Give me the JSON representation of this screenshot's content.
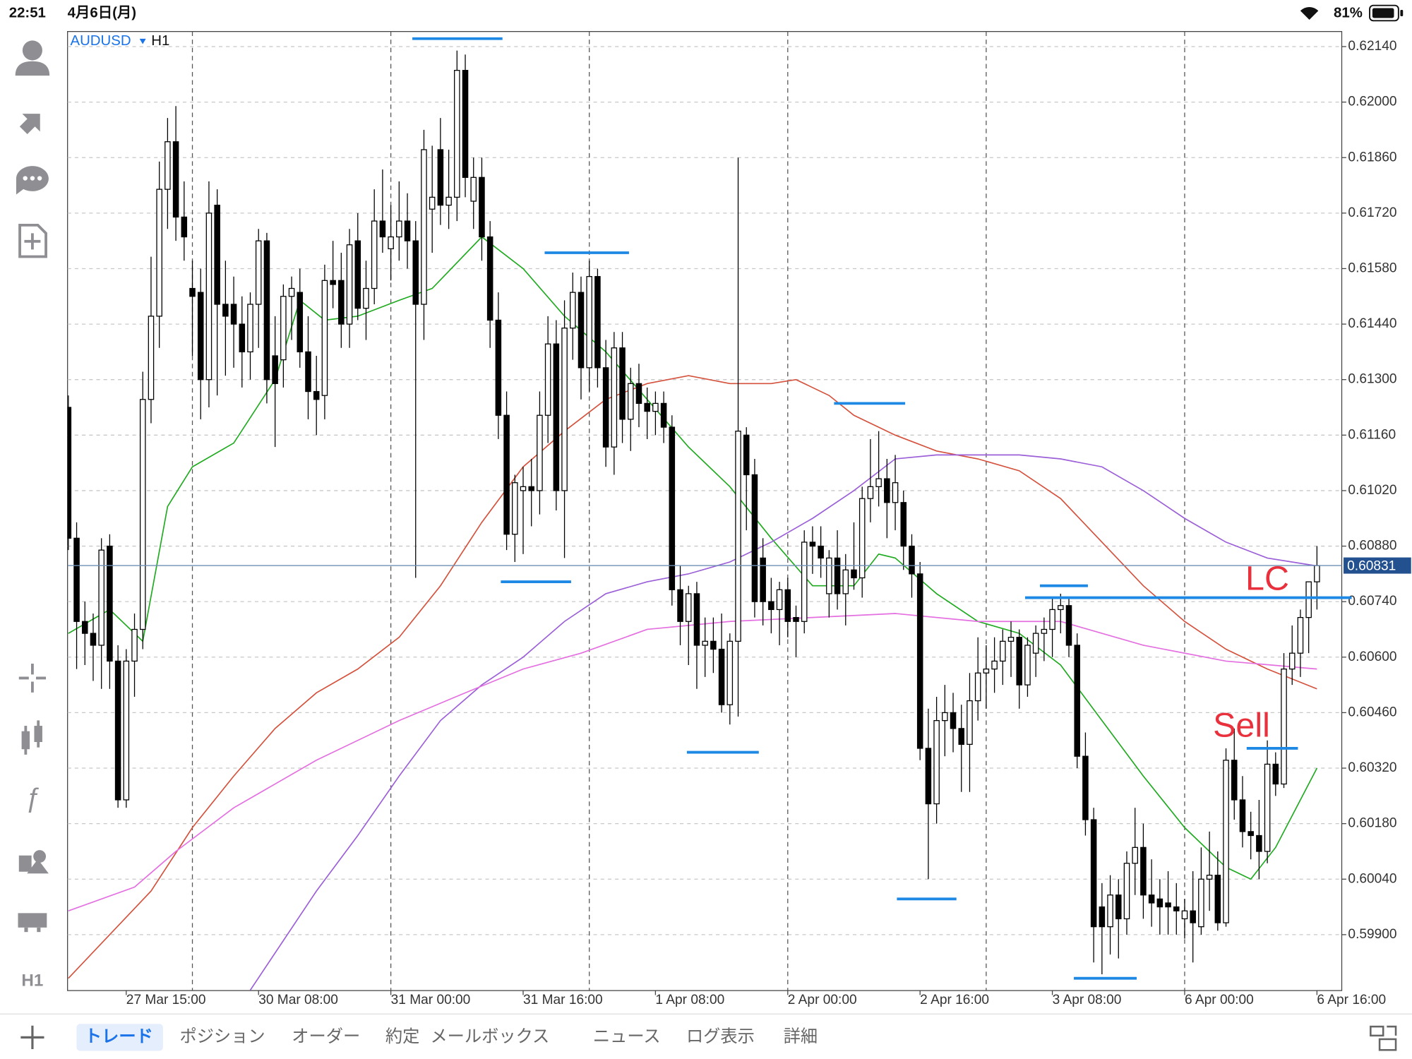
{
  "status_bar": {
    "time": "22:51",
    "date": "4月6日(月)",
    "battery": "81%"
  },
  "sidebar": {
    "timeframe": "H1"
  },
  "tabs": [
    "トレード",
    "ポジション",
    "オーダー",
    "約定",
    "メールボックス",
    "ニュース",
    "ログ表示",
    "詳細"
  ],
  "chart_data": {
    "type": "candlestick",
    "symbol": "AUDUSD",
    "timeframe": "H1",
    "up_color": "#ffffff",
    "down_color": "#000000",
    "candles": [
      [
        0.6123,
        0.6126,
        0.6087,
        0.609
      ],
      [
        0.609,
        0.6094,
        0.6057,
        0.6069
      ],
      [
        0.6069,
        0.6074,
        0.6058,
        0.6066
      ],
      [
        0.6066,
        0.6071,
        0.6054,
        0.6063
      ],
      [
        0.6063,
        0.609,
        0.6052,
        0.6087
      ],
      [
        0.6088,
        0.6091,
        0.6052,
        0.6059
      ],
      [
        0.6059,
        0.6063,
        0.6022,
        0.6024
      ],
      [
        0.6024,
        0.6062,
        0.6022,
        0.6059
      ],
      [
        0.6059,
        0.6071,
        0.605,
        0.6067
      ],
      [
        0.6067,
        0.6132,
        0.6062,
        0.6125
      ],
      [
        0.6125,
        0.6161,
        0.6119,
        0.6146
      ],
      [
        0.6146,
        0.6185,
        0.6138,
        0.6178
      ],
      [
        0.6178,
        0.6196,
        0.6168,
        0.619
      ],
      [
        0.619,
        0.6199,
        0.6165,
        0.6171
      ],
      [
        0.6171,
        0.618,
        0.616,
        0.6166
      ],
      [
        0.6153,
        0.616,
        0.6136,
        0.6151
      ],
      [
        0.6152,
        0.6158,
        0.612,
        0.613
      ],
      [
        0.613,
        0.618,
        0.6123,
        0.6172
      ],
      [
        0.6174,
        0.6178,
        0.6126,
        0.6149
      ],
      [
        0.6149,
        0.616,
        0.6131,
        0.6146
      ],
      [
        0.6149,
        0.6156,
        0.6133,
        0.6144
      ],
      [
        0.6144,
        0.6151,
        0.6128,
        0.6137
      ],
      [
        0.6137,
        0.6152,
        0.613,
        0.6149
      ],
      [
        0.6149,
        0.6168,
        0.6138,
        0.6165
      ],
      [
        0.6165,
        0.6167,
        0.6124,
        0.613
      ],
      [
        0.6136,
        0.6146,
        0.6113,
        0.6129
      ],
      [
        0.6135,
        0.6154,
        0.6128,
        0.6151
      ],
      [
        0.6151,
        0.6156,
        0.614,
        0.6153
      ],
      [
        0.6152,
        0.6158,
        0.6133,
        0.6137
      ],
      [
        0.6137,
        0.6146,
        0.612,
        0.6127
      ],
      [
        0.6127,
        0.6136,
        0.6116,
        0.6125
      ],
      [
        0.6126,
        0.6159,
        0.612,
        0.6155
      ],
      [
        0.6155,
        0.6165,
        0.6148,
        0.6154
      ],
      [
        0.6155,
        0.6162,
        0.6138,
        0.6144
      ],
      [
        0.6144,
        0.6168,
        0.6138,
        0.6164
      ],
      [
        0.6165,
        0.6172,
        0.6145,
        0.6148
      ],
      [
        0.6148,
        0.616,
        0.614,
        0.6153
      ],
      [
        0.6153,
        0.6178,
        0.6149,
        0.617
      ],
      [
        0.617,
        0.6183,
        0.6162,
        0.6166
      ],
      [
        0.6163,
        0.6174,
        0.6155,
        0.6166
      ],
      [
        0.6166,
        0.618,
        0.616,
        0.617
      ],
      [
        0.617,
        0.6177,
        0.6158,
        0.6165
      ],
      [
        0.6165,
        0.617,
        0.608,
        0.6149
      ],
      [
        0.6149,
        0.6193,
        0.614,
        0.6188
      ],
      [
        0.6173,
        0.6189,
        0.6162,
        0.6176
      ],
      [
        0.6188,
        0.6196,
        0.6169,
        0.6174
      ],
      [
        0.6174,
        0.6188,
        0.6168,
        0.6176
      ],
      [
        0.6176,
        0.6213,
        0.617,
        0.6208
      ],
      [
        0.6208,
        0.6212,
        0.6176,
        0.6181
      ],
      [
        0.6175,
        0.6186,
        0.6168,
        0.6181
      ],
      [
        0.6181,
        0.6186,
        0.616,
        0.6166
      ],
      [
        0.6166,
        0.617,
        0.6138,
        0.6145
      ],
      [
        0.6145,
        0.6152,
        0.6115,
        0.6121
      ],
      [
        0.6121,
        0.6127,
        0.6087,
        0.6091
      ],
      [
        0.6091,
        0.6106,
        0.6084,
        0.6104
      ],
      [
        0.6102,
        0.6108,
        0.6086,
        0.6103
      ],
      [
        0.6103,
        0.611,
        0.6093,
        0.6102
      ],
      [
        0.6102,
        0.6127,
        0.6096,
        0.6121
      ],
      [
        0.6121,
        0.6146,
        0.6114,
        0.6139
      ],
      [
        0.6139,
        0.6145,
        0.6097,
        0.6102
      ],
      [
        0.6102,
        0.615,
        0.6085,
        0.6143
      ],
      [
        0.6143,
        0.6157,
        0.6135,
        0.6152
      ],
      [
        0.6152,
        0.6156,
        0.6125,
        0.6133
      ],
      [
        0.6133,
        0.616,
        0.6127,
        0.6156
      ],
      [
        0.6156,
        0.6158,
        0.6128,
        0.6133
      ],
      [
        0.6133,
        0.614,
        0.6108,
        0.6113
      ],
      [
        0.6113,
        0.6142,
        0.6106,
        0.6138
      ],
      [
        0.6138,
        0.6142,
        0.6114,
        0.612
      ],
      [
        0.612,
        0.6133,
        0.6112,
        0.6129
      ],
      [
        0.6129,
        0.6134,
        0.6118,
        0.6124
      ],
      [
        0.6124,
        0.6128,
        0.6115,
        0.6122
      ],
      [
        0.6122,
        0.6127,
        0.6116,
        0.6124
      ],
      [
        0.6124,
        0.6127,
        0.6114,
        0.6118
      ],
      [
        0.6118,
        0.6121,
        0.6073,
        0.6077
      ],
      [
        0.6077,
        0.6083,
        0.6063,
        0.6069
      ],
      [
        0.6069,
        0.6078,
        0.6058,
        0.6076
      ],
      [
        0.6076,
        0.6079,
        0.6052,
        0.6063
      ],
      [
        0.6063,
        0.607,
        0.6055,
        0.6064
      ],
      [
        0.6064,
        0.607,
        0.6056,
        0.6062
      ],
      [
        0.6062,
        0.6071,
        0.6046,
        0.6048
      ],
      [
        0.6048,
        0.6066,
        0.6043,
        0.6064
      ],
      [
        0.6064,
        0.6186,
        0.6045,
        0.6117
      ],
      [
        0.6116,
        0.6118,
        0.6092,
        0.6106
      ],
      [
        0.6106,
        0.611,
        0.607,
        0.6074
      ],
      [
        0.6085,
        0.609,
        0.6068,
        0.6074
      ],
      [
        0.6074,
        0.608,
        0.6066,
        0.6072
      ],
      [
        0.6072,
        0.6079,
        0.6063,
        0.6077
      ],
      [
        0.6077,
        0.608,
        0.6065,
        0.6069
      ],
      [
        0.607,
        0.6073,
        0.606,
        0.6069
      ],
      [
        0.6069,
        0.6092,
        0.6066,
        0.6089
      ],
      [
        0.6089,
        0.6093,
        0.6081,
        0.6088
      ],
      [
        0.6088,
        0.6093,
        0.608,
        0.6085
      ],
      [
        0.6076,
        0.6087,
        0.607,
        0.6085
      ],
      [
        0.6085,
        0.6092,
        0.6072,
        0.6076
      ],
      [
        0.6076,
        0.6086,
        0.6068,
        0.6082
      ],
      [
        0.6082,
        0.6094,
        0.6077,
        0.608
      ],
      [
        0.608,
        0.6103,
        0.6075,
        0.61
      ],
      [
        0.61,
        0.6115,
        0.6094,
        0.6103
      ],
      [
        0.6103,
        0.6117,
        0.6098,
        0.6105
      ],
      [
        0.6105,
        0.611,
        0.609,
        0.6099
      ],
      [
        0.6099,
        0.6111,
        0.6092,
        0.6104
      ],
      [
        0.6099,
        0.6102,
        0.6082,
        0.6088
      ],
      [
        0.6088,
        0.6091,
        0.6075,
        0.6081
      ],
      [
        0.6081,
        0.6084,
        0.6034,
        0.6037
      ],
      [
        0.6037,
        0.6047,
        0.6004,
        0.6023
      ],
      [
        0.6023,
        0.605,
        0.6018,
        0.6044
      ],
      [
        0.6044,
        0.6053,
        0.6035,
        0.6046
      ],
      [
        0.6046,
        0.6051,
        0.6036,
        0.6042
      ],
      [
        0.6042,
        0.6048,
        0.6026,
        0.6038
      ],
      [
        0.6038,
        0.6056,
        0.6026,
        0.6049
      ],
      [
        0.6049,
        0.6065,
        0.6044,
        0.6056
      ],
      [
        0.6056,
        0.6063,
        0.6047,
        0.6057
      ],
      [
        0.6057,
        0.6065,
        0.6051,
        0.6059
      ],
      [
        0.6059,
        0.6067,
        0.6053,
        0.6064
      ],
      [
        0.6064,
        0.6069,
        0.6055,
        0.6065
      ],
      [
        0.6065,
        0.6067,
        0.6047,
        0.6053
      ],
      [
        0.6053,
        0.6065,
        0.605,
        0.6063
      ],
      [
        0.6061,
        0.6068,
        0.6055,
        0.6066
      ],
      [
        0.6066,
        0.607,
        0.6059,
        0.6067
      ],
      [
        0.6067,
        0.6075,
        0.606,
        0.6072
      ],
      [
        0.6072,
        0.6076,
        0.6066,
        0.6073
      ],
      [
        0.6073,
        0.6075,
        0.606,
        0.6063
      ],
      [
        0.6063,
        0.6066,
        0.6032,
        0.6035
      ],
      [
        0.6035,
        0.6041,
        0.6015,
        0.6019
      ],
      [
        0.6019,
        0.6022,
        0.5983,
        0.5992
      ],
      [
        0.5997,
        0.6003,
        0.598,
        0.5992
      ],
      [
        0.5992,
        0.6005,
        0.5985,
        0.6
      ],
      [
        0.6,
        0.6004,
        0.5984,
        0.5994
      ],
      [
        0.5994,
        0.6011,
        0.599,
        0.6008
      ],
      [
        0.6008,
        0.6022,
        0.6,
        0.6012
      ],
      [
        0.6012,
        0.6018,
        0.5994,
        0.6
      ],
      [
        0.6,
        0.6009,
        0.5992,
        0.5998
      ],
      [
        0.5999,
        0.6004,
        0.599,
        0.5997
      ],
      [
        0.5998,
        0.6006,
        0.599,
        0.5997
      ],
      [
        0.5997,
        0.6003,
        0.599,
        0.5996
      ],
      [
        0.5994,
        0.5999,
        0.5989,
        0.5996
      ],
      [
        0.5996,
        0.6006,
        0.5983,
        0.5993
      ],
      [
        0.5992,
        0.6012,
        0.599,
        0.6004
      ],
      [
        0.6004,
        0.6016,
        0.5996,
        0.6005
      ],
      [
        0.6005,
        0.6011,
        0.5991,
        0.5993
      ],
      [
        0.5993,
        0.6037,
        0.5992,
        0.6034
      ],
      [
        0.6034,
        0.6042,
        0.6019,
        0.6024
      ],
      [
        0.6024,
        0.603,
        0.6012,
        0.6016
      ],
      [
        0.6016,
        0.6021,
        0.6009,
        0.6015
      ],
      [
        0.6015,
        0.6024,
        0.6004,
        0.6011
      ],
      [
        0.6011,
        0.6039,
        0.6008,
        0.6033
      ],
      [
        0.6033,
        0.6036,
        0.6025,
        0.6028
      ],
      [
        0.6028,
        0.6061,
        0.6027,
        0.6057
      ],
      [
        0.6057,
        0.6068,
        0.6053,
        0.6061
      ],
      [
        0.6061,
        0.6072,
        0.6055,
        0.607
      ],
      [
        0.607,
        0.6079,
        0.6061,
        0.6079
      ],
      [
        0.6079,
        0.6088,
        0.6072,
        0.60831
      ]
    ],
    "xlim": [
      -0.1,
      154
    ],
    "xticks": [
      {
        "value": 7,
        "label": "27 Mar 15:00"
      },
      {
        "value": 23,
        "label": "30 Mar 08:00"
      },
      {
        "value": 39,
        "label": "31 Mar 00:00"
      },
      {
        "value": 55,
        "label": "31 Mar 16:00"
      },
      {
        "value": 71,
        "label": "1 Apr 08:00"
      },
      {
        "value": 87,
        "label": "2 Apr 00:00"
      },
      {
        "value": 103,
        "label": "2 Apr 16:00"
      },
      {
        "value": 119,
        "label": "3 Apr 08:00"
      },
      {
        "value": 135,
        "label": "6 Apr 00:00"
      },
      {
        "value": 151,
        "label": "6 Apr 16:00"
      }
    ],
    "ylim": [
      0.59759,
      0.62178
    ],
    "yticks": [
      {
        "value": 0.6214,
        "label": "0.62140"
      },
      {
        "value": 0.62,
        "label": "0.62000"
      },
      {
        "value": 0.6186,
        "label": "0.61860"
      },
      {
        "value": 0.6172,
        "label": "0.61720"
      },
      {
        "value": 0.6158,
        "label": "0.61580"
      },
      {
        "value": 0.6144,
        "label": "0.61440"
      },
      {
        "value": 0.613,
        "label": "0.61300"
      },
      {
        "value": 0.6116,
        "label": "0.61160"
      },
      {
        "value": 0.6102,
        "label": "0.61020"
      },
      {
        "value": 0.6088,
        "label": "0.60880"
      },
      {
        "value": 0.6074,
        "label": "0.60740"
      },
      {
        "value": 0.606,
        "label": "0.60600"
      },
      {
        "value": 0.6046,
        "label": "0.60460"
      },
      {
        "value": 0.6032,
        "label": "0.60320"
      },
      {
        "value": 0.6018,
        "label": "0.60180"
      },
      {
        "value": 0.6004,
        "label": "0.60040"
      },
      {
        "value": 0.599,
        "label": "0.59900"
      }
    ],
    "grid": true,
    "moving_averages": [
      {
        "color": "#1faa1f",
        "x": [
          0,
          5,
          9,
          12,
          15,
          20,
          25,
          28,
          31,
          35,
          40,
          44,
          50,
          55,
          60,
          65,
          70,
          75,
          80,
          85,
          90,
          95,
          98,
          100,
          105,
          110,
          115,
          120,
          125,
          130,
          135,
          140,
          143,
          146,
          151
        ],
        "values": [
          0.6066,
          0.6072,
          0.6064,
          0.6098,
          0.6108,
          0.6114,
          0.613,
          0.615,
          0.6145,
          0.6146,
          0.615,
          0.6153,
          0.6166,
          0.6158,
          0.6146,
          0.6137,
          0.6125,
          0.6113,
          0.6103,
          0.609,
          0.6078,
          0.6078,
          0.6086,
          0.6085,
          0.6076,
          0.6069,
          0.6066,
          0.6058,
          0.6044,
          0.603,
          0.6017,
          0.6007,
          0.6004,
          0.6012,
          0.6032
        ]
      },
      {
        "color": "#d4513c",
        "x": [
          0,
          10,
          15,
          20,
          25,
          30,
          35,
          40,
          45,
          50,
          55,
          60,
          65,
          70,
          75,
          80,
          85,
          88,
          92,
          95,
          100,
          105,
          110,
          115,
          120,
          125,
          130,
          135,
          140,
          145,
          151
        ],
        "values": [
          0.5979,
          0.6001,
          0.6017,
          0.603,
          0.6042,
          0.6051,
          0.6057,
          0.6065,
          0.6078,
          0.6094,
          0.6108,
          0.6117,
          0.6125,
          0.6129,
          0.6131,
          0.6129,
          0.6129,
          0.613,
          0.6126,
          0.6121,
          0.6116,
          0.6112,
          0.611,
          0.6107,
          0.61,
          0.6089,
          0.6078,
          0.6069,
          0.6062,
          0.6057,
          0.6052
        ]
      },
      {
        "color": "#9b5fd8",
        "x": [
          22,
          30,
          35,
          40,
          45,
          50,
          55,
          60,
          65,
          70,
          75,
          80,
          85,
          90,
          95,
          100,
          105,
          110,
          115,
          120,
          125,
          130,
          135,
          140,
          145,
          151
        ],
        "values": [
          0.5976,
          0.6001,
          0.6015,
          0.603,
          0.6044,
          0.6053,
          0.606,
          0.6069,
          0.6076,
          0.6079,
          0.6081,
          0.6084,
          0.6089,
          0.6095,
          0.6102,
          0.611,
          0.6111,
          0.6111,
          0.6111,
          0.611,
          0.6108,
          0.6102,
          0.6095,
          0.6089,
          0.6085,
          0.6083
        ]
      },
      {
        "color": "#e46fe0",
        "x": [
          0,
          8,
          13,
          20,
          30,
          40,
          48,
          55,
          62,
          70,
          80,
          90,
          100,
          110,
          120,
          130,
          140,
          151
        ],
        "values": [
          0.5996,
          0.6002,
          0.6011,
          0.6022,
          0.6034,
          0.6044,
          0.6051,
          0.6057,
          0.6061,
          0.6067,
          0.6069,
          0.607,
          0.6071,
          0.6069,
          0.6069,
          0.6063,
          0.6059,
          0.6057
        ]
      }
    ],
    "current_price": 0.60831,
    "level_color": "#1e88e5",
    "levels": [
      {
        "x": [
          41.6,
          52.5
        ],
        "value": 0.6216
      },
      {
        "x": [
          57.6,
          67.8
        ],
        "value": 0.6162
      },
      {
        "x": [
          52.3,
          60.8
        ],
        "value": 0.6079
      },
      {
        "x": [
          74.8,
          83.5
        ],
        "value": 0.6036
      },
      {
        "x": [
          92.6,
          101.2
        ],
        "value": 0.6124
      },
      {
        "x": [
          100.2,
          107.4
        ],
        "value": 0.5999
      },
      {
        "x": [
          117.5,
          123.3
        ],
        "value": 0.6078
      },
      {
        "x": [
          115.7,
          155.2
        ],
        "value": 0.6075
      },
      {
        "x": [
          121.6,
          129.2
        ],
        "value": 0.5979
      },
      {
        "x": [
          142.5,
          148.7
        ],
        "value": 0.6037
      }
    ],
    "annotation_color": "#e8313c",
    "annotations": [
      "LC",
      "Sell"
    ]
  }
}
